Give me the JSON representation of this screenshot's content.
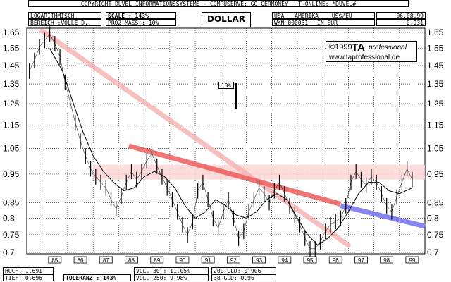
{
  "header": {
    "copyright": "COPYRIGHT DUVEL INFORMATIONSSYSTEME - COMPUSERVE: GO GERMONEY - T-ONLINE: *DUVEL#",
    "scale_mode": "LOGARITHMISCH",
    "range": "BEREICH :VOLLE D.",
    "scale_label": "SCALE : 143%",
    "prozmass": "PROZ.MASS.: 10%",
    "title": "DOLLAR",
    "region": "USA",
    "region_name": "AMERIKA",
    "pair": "US$/EU",
    "date": "06.08.99",
    "wkn": "WKN 000031",
    "currency": "IN EUR",
    "last_value": "0.931"
  },
  "credit": {
    "copyright": "©1999",
    "brand": "TA",
    "brand_sub": "professional",
    "url": "www.taprofessional.de"
  },
  "annotation": {
    "label": "10%"
  },
  "footer": {
    "hoch": "HOCH: 1.691",
    "tief": "TIEF: 0.696",
    "toleranz": "TOLERANZ : 143%",
    "vol30": "VOL. 30 : 11.05%",
    "vol250": "VOL. 250: 9.98%",
    "gld200": "200-GLD: 0.906",
    "gld38": "38-GLD: 0.96"
  },
  "colors": {
    "trend_pink": "#f7b4b4",
    "trend_red": "#ee5c5c",
    "trend_blue": "#7b78f0",
    "band": "#fbd2d2"
  },
  "chart_data": {
    "type": "line",
    "scale": "log",
    "ylim": [
      0.7,
      1.65
    ],
    "yticks": [
      0.7,
      0.75,
      0.8,
      0.85,
      0.95,
      1.05,
      1.15,
      1.25,
      1.35,
      1.45,
      1.55,
      1.65
    ],
    "ytick_labels": [
      "0.7",
      "0.75",
      "0.8",
      "0.85",
      "0.95",
      "1.05",
      "1.15",
      "1.25",
      "1.35",
      "1.45",
      "1.55",
      "1.65"
    ],
    "xlim": [
      1984.4,
      2000.0
    ],
    "x_categories": [
      "85",
      "86",
      "87",
      "88",
      "89",
      "90",
      "91",
      "92",
      "93",
      "94",
      "95",
      "96",
      "97",
      "98",
      "99"
    ],
    "grid": true,
    "series": [
      {
        "x": [
          1984.5,
          1984.7,
          1984.9,
          1985.1,
          1985.3,
          1985.5,
          1985.7,
          1985.9,
          1986.1,
          1986.3,
          1986.5,
          1986.7,
          1986.9,
          1987.1,
          1987.3,
          1987.5,
          1987.7,
          1987.9,
          1988.1,
          1988.3,
          1988.5,
          1988.7,
          1988.9,
          1989.1,
          1989.3,
          1989.5,
          1989.7,
          1989.9,
          1990.1,
          1990.3,
          1990.5,
          1990.7,
          1990.9,
          1991.1,
          1991.3,
          1991.5,
          1991.7,
          1991.9,
          1992.1,
          1992.3,
          1992.5,
          1992.7,
          1992.9,
          1993.1,
          1993.3,
          1993.5,
          1993.7,
          1993.9,
          1994.1,
          1994.3,
          1994.5,
          1994.7,
          1994.9,
          1995.1,
          1995.3,
          1995.5,
          1995.7,
          1995.9,
          1996.1,
          1996.3,
          1996.5,
          1996.7,
          1996.9,
          1997.1,
          1997.3,
          1997.5,
          1997.7,
          1997.9,
          1998.1,
          1998.3,
          1998.5,
          1998.7,
          1998.9,
          1999.1,
          1999.3,
          1999.5
        ],
        "y": [
          1.42,
          1.48,
          1.56,
          1.6,
          1.64,
          1.58,
          1.5,
          1.36,
          1.26,
          1.16,
          1.08,
          1.02,
          0.97,
          0.94,
          0.92,
          0.9,
          0.86,
          0.83,
          0.87,
          0.92,
          0.96,
          0.93,
          0.96,
          1.0,
          1.03,
          0.98,
          0.94,
          0.9,
          0.86,
          0.82,
          0.78,
          0.75,
          0.79,
          0.89,
          0.92,
          0.86,
          0.8,
          0.77,
          0.82,
          0.86,
          0.8,
          0.74,
          0.76,
          0.82,
          0.86,
          0.9,
          0.88,
          0.85,
          0.89,
          0.92,
          0.88,
          0.84,
          0.81,
          0.78,
          0.74,
          0.71,
          0.71,
          0.73,
          0.76,
          0.78,
          0.79,
          0.8,
          0.84,
          0.92,
          0.96,
          0.93,
          0.91,
          0.94,
          0.92,
          0.88,
          0.84,
          0.82,
          0.87,
          0.92,
          0.97,
          0.93
        ]
      },
      {
        "x": [
          1985.3,
          1985.8,
          1986.2,
          1986.6,
          1987.0,
          1987.4,
          1987.8,
          1988.2,
          1988.6,
          1989.0,
          1989.4,
          1989.8,
          1990.2,
          1990.6,
          1991.0,
          1991.4,
          1991.8,
          1992.2,
          1992.6,
          1993.0,
          1993.4,
          1993.8,
          1994.2,
          1994.6,
          1995.0,
          1995.4,
          1995.8,
          1996.2,
          1996.6,
          1997.0,
          1997.4,
          1997.8,
          1998.2,
          1998.6,
          1999.0,
          1999.5
        ],
        "y": [
          1.55,
          1.42,
          1.26,
          1.12,
          1.02,
          0.96,
          0.92,
          0.89,
          0.9,
          0.94,
          0.96,
          0.94,
          0.9,
          0.84,
          0.8,
          0.82,
          0.86,
          0.84,
          0.81,
          0.8,
          0.82,
          0.86,
          0.88,
          0.86,
          0.8,
          0.75,
          0.72,
          0.74,
          0.77,
          0.82,
          0.88,
          0.92,
          0.92,
          0.89,
          0.88,
          0.9
        ]
      }
    ]
  }
}
